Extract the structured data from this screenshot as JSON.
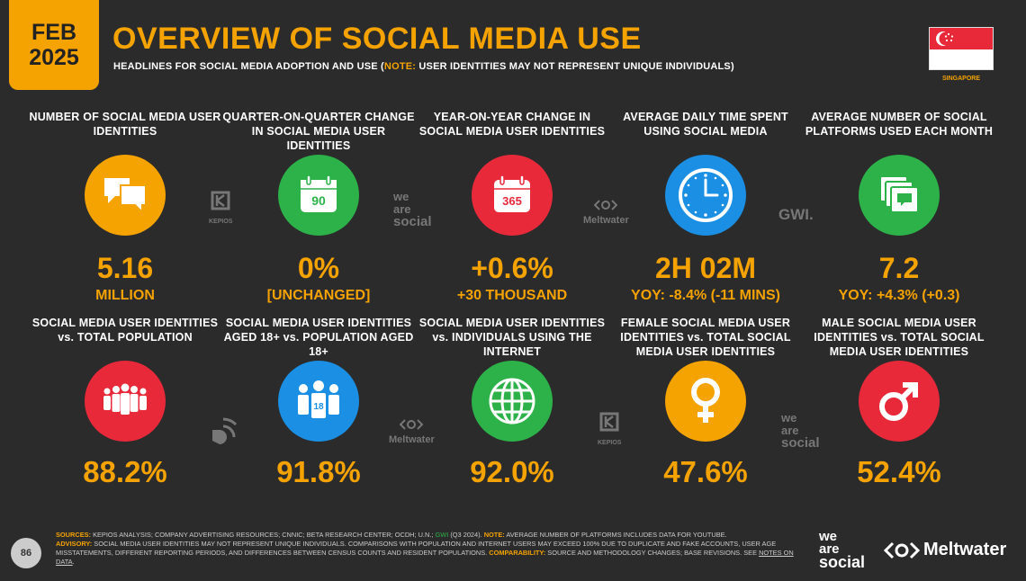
{
  "header": {
    "month": "FEB",
    "year": "2025",
    "title": "OVERVIEW OF SOCIAL MEDIA USE",
    "subtitle_main": "HEADLINES FOR SOCIAL MEDIA ADOPTION AND USE (",
    "subtitle_note_label": "NOTE:",
    "subtitle_note": " USER IDENTITIES MAY NOT REPRESENT UNIQUE INDIVIDUALS)",
    "country": "SINGAPORE"
  },
  "top_row": [
    {
      "label": "NUMBER OF SOCIAL MEDIA USER IDENTITIES",
      "value": "5.16",
      "sub": "MILLION",
      "icon": "chat-bubbles-icon",
      "color": "#f5a300"
    },
    {
      "label": "QUARTER-ON-QUARTER CHANGE IN SOCIAL MEDIA USER IDENTITIES",
      "value": "0%",
      "sub": "[UNCHANGED]",
      "icon": "calendar-90-icon",
      "icon_text": "90",
      "color": "#2db24a"
    },
    {
      "label": "YEAR-ON-YEAR CHANGE IN SOCIAL MEDIA USER IDENTITIES",
      "value": "+0.6%",
      "sub": "+30 THOUSAND",
      "icon": "calendar-365-icon",
      "icon_text": "365",
      "color": "#e8293a"
    },
    {
      "label": "AVERAGE DAILY TIME SPENT USING SOCIAL MEDIA",
      "value": "2H 02M",
      "sub": "YOY: -8.4% (-11 MINS)",
      "icon": "clock-icon",
      "color": "#1a8fe3"
    },
    {
      "label": "AVERAGE NUMBER OF SOCIAL PLATFORMS USED EACH MONTH",
      "value": "7.2",
      "sub": "YOY: +4.3% (+0.3)",
      "icon": "stacked-screens-icon",
      "color": "#2db24a"
    }
  ],
  "bottom_row": [
    {
      "label": "SOCIAL MEDIA USER IDENTITIES vs. TOTAL POPULATION",
      "value": "88.2%",
      "icon": "crowd-icon",
      "color": "#e8293a"
    },
    {
      "label": "SOCIAL MEDIA USER IDENTITIES AGED 18+ vs. POPULATION AGED 18+",
      "value": "91.8%",
      "icon": "adults-18-icon",
      "icon_text": "18",
      "color": "#1a8fe3"
    },
    {
      "label": "SOCIAL MEDIA USER IDENTITIES vs. INDIVIDUALS USING THE INTERNET",
      "value": "92.0%",
      "icon": "globe-icon",
      "color": "#2db24a"
    },
    {
      "label": "FEMALE SOCIAL MEDIA USER IDENTITIES vs. TOTAL SOCIAL MEDIA USER IDENTITIES",
      "value": "47.6%",
      "icon": "female-symbol-icon",
      "color": "#f5a300"
    },
    {
      "label": "MALE SOCIAL MEDIA USER IDENTITIES vs. TOTAL SOCIAL MEDIA USER IDENTITIES",
      "value": "52.4%",
      "icon": "male-symbol-icon",
      "color": "#e8293a"
    }
  ],
  "source_logos": {
    "kepios": "KEPIOS",
    "was_1": "we",
    "was_2": "are",
    "was_3": "social",
    "meltwater": "Meltwater",
    "gwi": "GWI."
  },
  "footer": {
    "page_number": "86",
    "sources_label": "SOURCES:",
    "sources_text": " KEPIOS ANALYSIS; COMPANY ADVERTISING RESOURCES; CNNIC; BETA RESEARCH CENTER; OCDH; U.N.; ",
    "sources_gwi": "GWI",
    "sources_tail": " (Q3 2024). ",
    "note_label": "NOTE:",
    "note_text": " AVERAGE NUMBER OF PLATFORMS INCLUDES DATA FOR YOUTUBE.",
    "advisory_label": "ADVISORY:",
    "advisory_text": " SOCIAL MEDIA USER IDENTITIES MAY NOT REPRESENT UNIQUE INDIVIDUALS. COMPARISONS WITH POPULATION AND INTERNET USERS MAY EXCEED 100% DUE TO DUPLICATE AND FAKE ACCOUNTS, USER AGE MISSTATEMENTS, DIFFERENT REPORTING PERIODS, AND DIFFERENCES BETWEEN CENSUS COUNTS AND RESIDENT POPULATIONS. ",
    "comparability_label": "COMPARABILITY:",
    "comparability_text": " SOURCE AND METHODOLOGY CHANGES; BASE REVISIONS. SEE ",
    "notes_link": "NOTES ON DATA",
    "end": "."
  },
  "brand": {
    "was_1": "we",
    "was_2": "are",
    "was_3": "social",
    "meltwater": "Meltwater"
  }
}
